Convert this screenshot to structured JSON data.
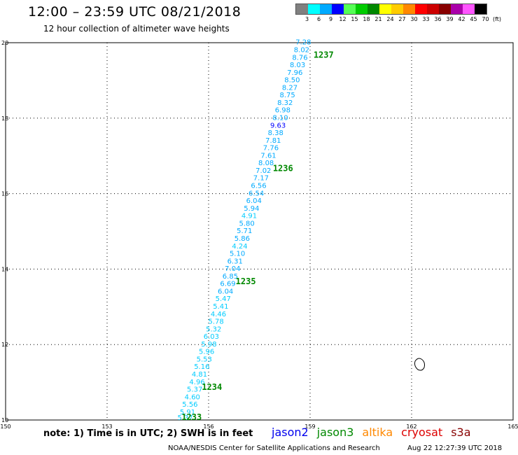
{
  "header": {
    "title": "12:00 – 23:59 UTC 08/21/2018",
    "subtitle": "12 hour collection of altimeter wave heights"
  },
  "legend": {
    "unit": "(ft)",
    "bins": [
      {
        "label": "3",
        "color": "#808080"
      },
      {
        "label": "6",
        "color": "#00ffff"
      },
      {
        "label": "9",
        "color": "#00aaff"
      },
      {
        "label": "12",
        "color": "#0000ff"
      },
      {
        "label": "15",
        "color": "#55ff55"
      },
      {
        "label": "18",
        "color": "#00cc00"
      },
      {
        "label": "21",
        "color": "#008800"
      },
      {
        "label": "24",
        "color": "#ffff00"
      },
      {
        "label": "27",
        "color": "#ffcc00"
      },
      {
        "label": "30",
        "color": "#ff8800"
      },
      {
        "label": "33",
        "color": "#ff0000"
      },
      {
        "label": "36",
        "color": "#cc0000"
      },
      {
        "label": "39",
        "color": "#880000"
      },
      {
        "label": "42",
        "color": "#aa00aa"
      },
      {
        "label": "45",
        "color": "#ff55ff"
      },
      {
        "label": "70",
        "color": "#000000"
      }
    ]
  },
  "map": {
    "x_ticks": [
      "150",
      "153",
      "156",
      "159",
      "162",
      "165"
    ],
    "y_ticks": [
      "10",
      "12",
      "14",
      "16",
      "18",
      "20"
    ],
    "lon_range": [
      150,
      165
    ],
    "lat_range": [
      10,
      20
    ],
    "pass_labels": [
      {
        "text": "1237",
        "lon": 159.1,
        "lat": 19.6
      },
      {
        "text": "1236",
        "lon": 157.9,
        "lat": 16.6
      },
      {
        "text": "1235",
        "lon": 156.8,
        "lat": 13.6
      },
      {
        "text": "1234",
        "lon": 155.8,
        "lat": 10.8
      },
      {
        "text": "1233",
        "lon": 155.2,
        "lat": 10.0
      }
    ],
    "observations": [
      {
        "v": "7.28",
        "lon": 158.8,
        "lat": 19.95,
        "c": "#00aaff"
      },
      {
        "v": "8.02",
        "lon": 158.75,
        "lat": 19.75,
        "c": "#00aaff"
      },
      {
        "v": "8.76",
        "lon": 158.7,
        "lat": 19.55,
        "c": "#00aaff"
      },
      {
        "v": "8.03",
        "lon": 158.63,
        "lat": 19.35,
        "c": "#00aaff"
      },
      {
        "v": "7.96",
        "lon": 158.55,
        "lat": 19.15,
        "c": "#00aaff"
      },
      {
        "v": "8.50",
        "lon": 158.47,
        "lat": 18.95,
        "c": "#00aaff"
      },
      {
        "v": "8.27",
        "lon": 158.4,
        "lat": 18.75,
        "c": "#00aaff"
      },
      {
        "v": "8.75",
        "lon": 158.33,
        "lat": 18.55,
        "c": "#00aaff"
      },
      {
        "v": "8.32",
        "lon": 158.26,
        "lat": 18.35,
        "c": "#00aaff"
      },
      {
        "v": "6.98",
        "lon": 158.19,
        "lat": 18.15,
        "c": "#00aaff"
      },
      {
        "v": "8.10",
        "lon": 158.12,
        "lat": 17.95,
        "c": "#00aaff"
      },
      {
        "v": "9.63",
        "lon": 158.05,
        "lat": 17.75,
        "c": "#0000ff"
      },
      {
        "v": "8.38",
        "lon": 157.98,
        "lat": 17.55,
        "c": "#00aaff"
      },
      {
        "v": "7.81",
        "lon": 157.91,
        "lat": 17.35,
        "c": "#00aaff"
      },
      {
        "v": "7.76",
        "lon": 157.84,
        "lat": 17.15,
        "c": "#00aaff"
      },
      {
        "v": "7.61",
        "lon": 157.77,
        "lat": 16.95,
        "c": "#00aaff"
      },
      {
        "v": "8.08",
        "lon": 157.7,
        "lat": 16.75,
        "c": "#00aaff"
      },
      {
        "v": "7.02",
        "lon": 157.62,
        "lat": 16.55,
        "c": "#00aaff"
      },
      {
        "v": "7.17",
        "lon": 157.55,
        "lat": 16.35,
        "c": "#00aaff"
      },
      {
        "v": "6.56",
        "lon": 157.48,
        "lat": 16.15,
        "c": "#00aaff"
      },
      {
        "v": "6.54",
        "lon": 157.41,
        "lat": 15.95,
        "c": "#00aaff"
      },
      {
        "v": "6.04",
        "lon": 157.34,
        "lat": 15.75,
        "c": "#00aaff"
      },
      {
        "v": "5.94",
        "lon": 157.27,
        "lat": 15.55,
        "c": "#00aaff"
      },
      {
        "v": "4.91",
        "lon": 157.2,
        "lat": 15.35,
        "c": "#00ccff"
      },
      {
        "v": "5.80",
        "lon": 157.13,
        "lat": 15.15,
        "c": "#00aaff"
      },
      {
        "v": "5.71",
        "lon": 157.06,
        "lat": 14.95,
        "c": "#00aaff"
      },
      {
        "v": "5.86",
        "lon": 156.99,
        "lat": 14.75,
        "c": "#00aaff"
      },
      {
        "v": "4.24",
        "lon": 156.92,
        "lat": 14.55,
        "c": "#00ccff"
      },
      {
        "v": "5.10",
        "lon": 156.85,
        "lat": 14.35,
        "c": "#00aaff"
      },
      {
        "v": "6.31",
        "lon": 156.78,
        "lat": 14.15,
        "c": "#00aaff"
      },
      {
        "v": "7.04",
        "lon": 156.71,
        "lat": 13.95,
        "c": "#00aaff"
      },
      {
        "v": "6.85",
        "lon": 156.64,
        "lat": 13.75,
        "c": "#00aaff"
      },
      {
        "v": "6.69",
        "lon": 156.57,
        "lat": 13.55,
        "c": "#00aaff"
      },
      {
        "v": "6.04",
        "lon": 156.5,
        "lat": 13.35,
        "c": "#00aaff"
      },
      {
        "v": "5.47",
        "lon": 156.43,
        "lat": 13.15,
        "c": "#00ccff"
      },
      {
        "v": "5.41",
        "lon": 156.36,
        "lat": 12.95,
        "c": "#00ccff"
      },
      {
        "v": "4.46",
        "lon": 156.29,
        "lat": 12.75,
        "c": "#00ccff"
      },
      {
        "v": "5.78",
        "lon": 156.22,
        "lat": 12.55,
        "c": "#00ccff"
      },
      {
        "v": "5.32",
        "lon": 156.15,
        "lat": 12.35,
        "c": "#00ccff"
      },
      {
        "v": "6.03",
        "lon": 156.08,
        "lat": 12.15,
        "c": "#00ccff"
      },
      {
        "v": "5.98",
        "lon": 156.01,
        "lat": 11.95,
        "c": "#00ccff"
      },
      {
        "v": "5.96",
        "lon": 155.94,
        "lat": 11.75,
        "c": "#00ccff"
      },
      {
        "v": "5.53",
        "lon": 155.87,
        "lat": 11.55,
        "c": "#00ccff"
      },
      {
        "v": "5.16",
        "lon": 155.8,
        "lat": 11.35,
        "c": "#00ccff"
      },
      {
        "v": "4.81",
        "lon": 155.73,
        "lat": 11.15,
        "c": "#00ccff"
      },
      {
        "v": "4.96",
        "lon": 155.66,
        "lat": 10.95,
        "c": "#00ccff"
      },
      {
        "v": "5.37",
        "lon": 155.59,
        "lat": 10.75,
        "c": "#00ccff"
      },
      {
        "v": "4.60",
        "lon": 155.52,
        "lat": 10.55,
        "c": "#00ccff"
      },
      {
        "v": "5.56",
        "lon": 155.45,
        "lat": 10.35,
        "c": "#00ccff"
      },
      {
        "v": "5.91",
        "lon": 155.38,
        "lat": 10.15,
        "c": "#00ccff"
      },
      {
        "v": "5.37",
        "lon": 155.31,
        "lat": 10.0,
        "c": "#00ccff"
      }
    ]
  },
  "footer": {
    "note": "note: 1) Time is in UTC; 2) SWH is in feet",
    "satellites": [
      {
        "name": "jason2",
        "color": "#0000ee"
      },
      {
        "name": "jason3",
        "color": "#008800"
      },
      {
        "name": "altika",
        "color": "#ff8800"
      },
      {
        "name": "cryosat",
        "color": "#dd0000"
      },
      {
        "name": "s3a",
        "color": "#880000"
      }
    ],
    "credit": "NOAA/NESDIS Center for Satellite Applications and Research",
    "stamp": "Aug 22 12:27:39 UTC 2018"
  }
}
